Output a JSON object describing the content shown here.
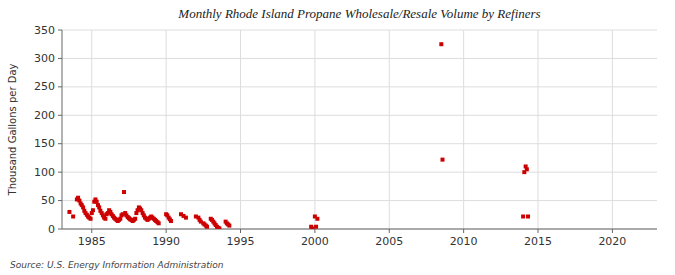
{
  "chart_data": {
    "type": "scatter",
    "title": "Monthly Rhode Island Propane Wholesale/Resale Volume by Refiners",
    "ylabel": "Thousand Gallons per Day",
    "source": "Source: U.S. Energy Information Administration",
    "color": "#cc0000",
    "marker": "square",
    "grid": true,
    "xlim": [
      1983,
      2023
    ],
    "ylim": [
      0,
      350
    ],
    "xticks": [
      1985,
      1990,
      1995,
      2000,
      2005,
      2010,
      2015,
      2020
    ],
    "yticks": [
      0,
      50,
      100,
      150,
      200,
      250,
      300,
      350
    ],
    "x": [
      1983.5,
      1983.75,
      1984.0,
      1984.08,
      1984.17,
      1984.25,
      1984.33,
      1984.42,
      1984.5,
      1984.58,
      1984.67,
      1984.75,
      1984.83,
      1984.92,
      1985.0,
      1985.08,
      1985.17,
      1985.25,
      1985.33,
      1985.42,
      1985.5,
      1985.58,
      1985.67,
      1985.75,
      1985.83,
      1985.92,
      1986.0,
      1986.08,
      1986.17,
      1986.25,
      1986.33,
      1986.42,
      1986.5,
      1986.58,
      1986.67,
      1986.75,
      1986.83,
      1986.92,
      1987.0,
      1987.08,
      1987.17,
      1987.25,
      1987.33,
      1987.42,
      1987.5,
      1987.58,
      1987.67,
      1987.75,
      1987.83,
      1987.92,
      1988.0,
      1988.08,
      1988.17,
      1988.25,
      1988.33,
      1988.42,
      1988.5,
      1988.58,
      1988.67,
      1988.75,
      1988.83,
      1988.92,
      1989.0,
      1989.08,
      1989.17,
      1989.25,
      1989.33,
      1989.42,
      1989.5,
      1990.0,
      1990.08,
      1990.17,
      1990.25,
      1990.33,
      1991.0,
      1991.17,
      1991.33,
      1992.0,
      1992.17,
      1992.25,
      1992.33,
      1992.5,
      1992.58,
      1992.67,
      1992.75,
      1993.0,
      1993.08,
      1993.17,
      1993.25,
      1993.33,
      1993.42,
      1993.5,
      1993.58,
      1994.0,
      1994.08,
      1994.17,
      1994.25,
      1999.75,
      1999.83,
      2000.0,
      2000.08,
      2000.17,
      2008.5,
      2008.58,
      2014.0,
      2014.08,
      2014.17,
      2014.25,
      2014.33
    ],
    "values": [
      30,
      22,
      52,
      55,
      50,
      45,
      42,
      38,
      32,
      28,
      25,
      22,
      20,
      18,
      28,
      33,
      48,
      52,
      48,
      42,
      38,
      32,
      28,
      24,
      20,
      18,
      26,
      28,
      33,
      30,
      26,
      23,
      20,
      18,
      16,
      14,
      16,
      18,
      24,
      26,
      65,
      28,
      24,
      21,
      19,
      17,
      16,
      14,
      16,
      18,
      28,
      33,
      38,
      36,
      33,
      28,
      24,
      20,
      18,
      16,
      18,
      20,
      22,
      20,
      18,
      16,
      14,
      12,
      10,
      26,
      24,
      20,
      17,
      14,
      26,
      23,
      20,
      22,
      20,
      16,
      13,
      10,
      8,
      6,
      4,
      18,
      16,
      13,
      10,
      7,
      4,
      2,
      1,
      13,
      10,
      8,
      6,
      4,
      1,
      22,
      4,
      18,
      325,
      122,
      22,
      100,
      110,
      105,
      22
    ]
  }
}
